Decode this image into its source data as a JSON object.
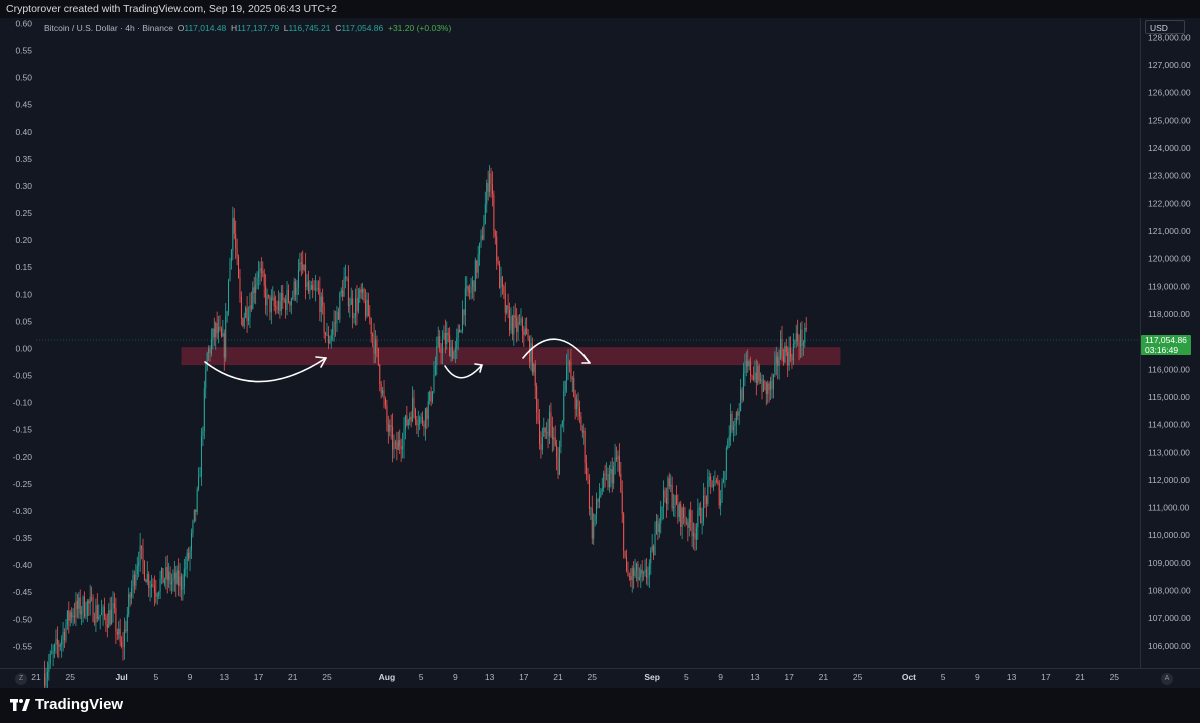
{
  "header": {
    "text": "Cryptorover created with TradingView.com, Sep 19, 2025 06:43 UTC+2"
  },
  "legend": {
    "symbol": "Bitcoin / U.S. Dollar · 4h · Binance",
    "o_label": "O",
    "o_value": "117,014.48",
    "h_label": "H",
    "h_value": "117,137.79",
    "l_label": "L",
    "l_value": "116,745.21",
    "c_label": "C",
    "c_value": "117,054.86",
    "change": "+31.20 (+0.03%)"
  },
  "currency_label": "USD",
  "price_label": {
    "price": "117,054.86",
    "countdown": "03:16:49"
  },
  "corner_left": "Z",
  "corner_right": "A",
  "footer": {
    "brand": "TradingView"
  },
  "colors": {
    "background": "#131722",
    "up": "#26a69a",
    "down": "#ef5350",
    "zone": "#6b2233",
    "price_label": "#2ea043"
  },
  "chart_data": {
    "type": "candlestick",
    "symbol": "BTCUSD",
    "timeframe": "4h",
    "right_axis": {
      "label": "USD",
      "range": [
        105200,
        128700
      ],
      "ticks": [
        "128,000.00",
        "127,000.00",
        "126,000.00",
        "125,000.00",
        "124,000.00",
        "123,000.00",
        "122,000.00",
        "121,000.00",
        "120,000.00",
        "119,000.00",
        "118,000.00",
        "117,000.00",
        "116,000.00",
        "115,000.00",
        "114,000.00",
        "113,000.00",
        "112,000.00",
        "111,000.00",
        "110,000.00",
        "109,000.00",
        "108,000.00",
        "107,000.00",
        "106,000.00"
      ]
    },
    "left_axis": {
      "range": [
        -0.59,
        0.61
      ],
      "ticks": [
        "0.60",
        "0.55",
        "0.50",
        "0.45",
        "0.40",
        "0.35",
        "0.30",
        "0.25",
        "0.20",
        "0.15",
        "0.10",
        "0.05",
        "0.00",
        "-0.05",
        "-0.10",
        "-0.15",
        "-0.20",
        "-0.25",
        "-0.30",
        "-0.35",
        "-0.40",
        "-0.45",
        "-0.50",
        "-0.55"
      ]
    },
    "x_axis": {
      "start_date": "2025-06-21",
      "end_date": "2025-10-28",
      "ticks": [
        {
          "label": "21",
          "date": "2025-06-21"
        },
        {
          "label": "25",
          "date": "2025-06-25"
        },
        {
          "label": "Jul",
          "date": "2025-07-01"
        },
        {
          "label": "5",
          "date": "2025-07-05"
        },
        {
          "label": "9",
          "date": "2025-07-09"
        },
        {
          "label": "13",
          "date": "2025-07-13"
        },
        {
          "label": "17",
          "date": "2025-07-17"
        },
        {
          "label": "21",
          "date": "2025-07-21"
        },
        {
          "label": "25",
          "date": "2025-07-25"
        },
        {
          "label": "Aug",
          "date": "2025-08-01"
        },
        {
          "label": "5",
          "date": "2025-08-05"
        },
        {
          "label": "9",
          "date": "2025-08-09"
        },
        {
          "label": "13",
          "date": "2025-08-13"
        },
        {
          "label": "17",
          "date": "2025-08-17"
        },
        {
          "label": "21",
          "date": "2025-08-21"
        },
        {
          "label": "25",
          "date": "2025-08-25"
        },
        {
          "label": "Sep",
          "date": "2025-09-01"
        },
        {
          "label": "5",
          "date": "2025-09-05"
        },
        {
          "label": "9",
          "date": "2025-09-09"
        },
        {
          "label": "13",
          "date": "2025-09-13"
        },
        {
          "label": "17",
          "date": "2025-09-17"
        },
        {
          "label": "21",
          "date": "2025-09-21"
        },
        {
          "label": "25",
          "date": "2025-09-25"
        },
        {
          "label": "Oct",
          "date": "2025-10-01"
        },
        {
          "label": "5",
          "date": "2025-10-05"
        },
        {
          "label": "9",
          "date": "2025-10-09"
        },
        {
          "label": "13",
          "date": "2025-10-13"
        },
        {
          "label": "17",
          "date": "2025-10-17"
        },
        {
          "label": "21",
          "date": "2025-10-21"
        },
        {
          "label": "25",
          "date": "2025-10-25"
        }
      ]
    },
    "price_path": [
      [
        "2025-06-22",
        105000
      ],
      [
        "2025-06-24",
        106300
      ],
      [
        "2025-06-25",
        107200
      ],
      [
        "2025-06-27",
        107500
      ],
      [
        "2025-06-29",
        107000
      ],
      [
        "2025-06-30",
        107200
      ],
      [
        "2025-07-01",
        105800
      ],
      [
        "2025-07-02",
        107800
      ],
      [
        "2025-07-03",
        109400
      ],
      [
        "2025-07-04",
        108500
      ],
      [
        "2025-07-05",
        108100
      ],
      [
        "2025-07-06",
        108500
      ],
      [
        "2025-07-07",
        108300
      ],
      [
        "2025-07-08",
        108300
      ],
      [
        "2025-07-09",
        109400
      ],
      [
        "2025-07-10",
        111700
      ],
      [
        "2025-07-11",
        116500
      ],
      [
        "2025-07-12",
        117400
      ],
      [
        "2025-07-13",
        116800
      ],
      [
        "2025-07-14",
        121500
      ],
      [
        "2025-07-15",
        117800
      ],
      [
        "2025-07-16",
        118400
      ],
      [
        "2025-07-17",
        119700
      ],
      [
        "2025-07-18",
        118400
      ],
      [
        "2025-07-19",
        118200
      ],
      [
        "2025-07-21",
        118700
      ],
      [
        "2025-07-22",
        119700
      ],
      [
        "2025-07-23",
        118600
      ],
      [
        "2025-07-24",
        118800
      ],
      [
        "2025-07-25",
        117000
      ],
      [
        "2025-07-26",
        117700
      ],
      [
        "2025-07-27",
        119200
      ],
      [
        "2025-07-28",
        118200
      ],
      [
        "2025-07-29",
        118600
      ],
      [
        "2025-07-30",
        117800
      ],
      [
        "2025-07-31",
        116200
      ],
      [
        "2025-08-01",
        114000
      ],
      [
        "2025-08-02",
        113000
      ],
      [
        "2025-08-03",
        113800
      ],
      [
        "2025-08-04",
        114700
      ],
      [
        "2025-08-05",
        114100
      ],
      [
        "2025-08-06",
        114800
      ],
      [
        "2025-08-07",
        116800
      ],
      [
        "2025-08-08",
        117100
      ],
      [
        "2025-08-09",
        116500
      ],
      [
        "2025-08-10",
        118400
      ],
      [
        "2025-08-11",
        119000
      ],
      [
        "2025-08-12",
        120500
      ],
      [
        "2025-08-13",
        123300
      ],
      [
        "2025-08-14",
        119500
      ],
      [
        "2025-08-15",
        117900
      ],
      [
        "2025-08-16",
        117500
      ],
      [
        "2025-08-17",
        117500
      ],
      [
        "2025-08-18",
        116300
      ],
      [
        "2025-08-19",
        113200
      ],
      [
        "2025-08-20",
        114200
      ],
      [
        "2025-08-21",
        112500
      ],
      [
        "2025-08-22",
        116500
      ],
      [
        "2025-08-23",
        114800
      ],
      [
        "2025-08-24",
        113500
      ],
      [
        "2025-08-25",
        110200
      ],
      [
        "2025-08-26",
        111700
      ],
      [
        "2025-08-27",
        112000
      ],
      [
        "2025-08-28",
        112800
      ],
      [
        "2025-08-29",
        108400
      ],
      [
        "2025-08-30",
        108600
      ],
      [
        "2025-08-31",
        108300
      ],
      [
        "2025-09-01",
        109200
      ],
      [
        "2025-09-02",
        111200
      ],
      [
        "2025-09-03",
        111700
      ],
      [
        "2025-09-04",
        110800
      ],
      [
        "2025-09-05",
        110600
      ],
      [
        "2025-09-06",
        110200
      ],
      [
        "2025-09-07",
        111100
      ],
      [
        "2025-09-08",
        112000
      ],
      [
        "2025-09-09",
        111400
      ],
      [
        "2025-09-10",
        113900
      ],
      [
        "2025-09-11",
        114500
      ],
      [
        "2025-09-12",
        116000
      ],
      [
        "2025-09-13",
        115900
      ],
      [
        "2025-09-14",
        115300
      ],
      [
        "2025-09-15",
        115300
      ],
      [
        "2025-09-16",
        116800
      ],
      [
        "2025-09-17",
        116500
      ],
      [
        "2025-09-18",
        117100
      ],
      [
        "2025-09-19",
        117055
      ]
    ],
    "annotations": [
      {
        "type": "zone",
        "price_from": 116150,
        "price_to": 116800,
        "date_from": "2025-07-08",
        "date_to": "2025-09-23"
      }
    ]
  }
}
